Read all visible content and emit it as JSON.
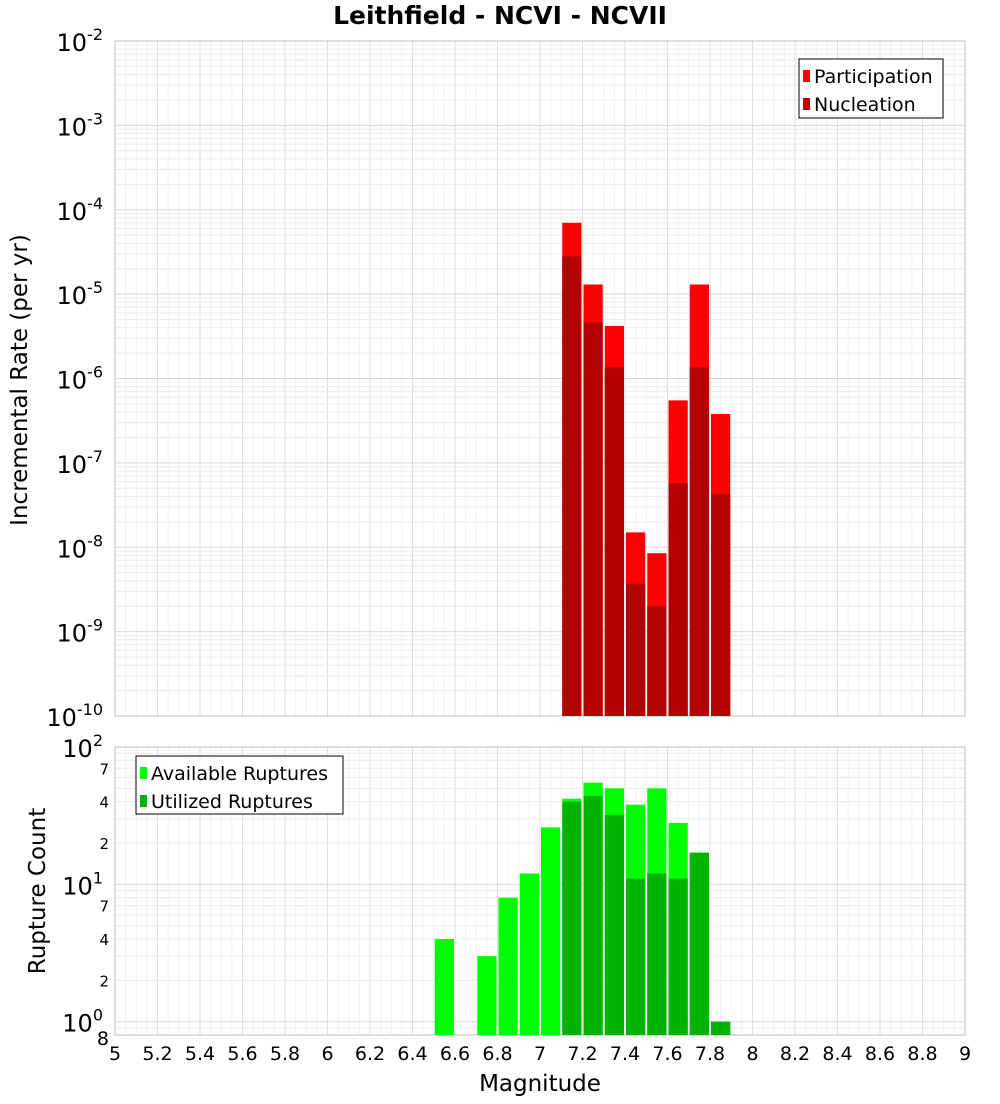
{
  "chart_data": [
    {
      "type": "bar",
      "title": "Leithfield - NCVI - NCVII",
      "xlabel": "Magnitude",
      "ylabel": "Incremental Rate (per yr)",
      "y_scale": "log",
      "xlim": [
        5,
        9
      ],
      "ylim": [
        1e-10,
        0.01
      ],
      "y_tick_labels": [
        {
          "base": "10",
          "exp": "-2"
        },
        {
          "base": "10",
          "exp": "-3"
        },
        {
          "base": "10",
          "exp": "-4"
        },
        {
          "base": "10",
          "exp": "-5"
        },
        {
          "base": "10",
          "exp": "-6"
        },
        {
          "base": "10",
          "exp": "-7"
        },
        {
          "base": "10",
          "exp": "-8"
        },
        {
          "base": "10",
          "exp": "-9"
        },
        {
          "base": "10",
          "exp": "-10"
        }
      ],
      "grid": true,
      "legend_position": "top-right",
      "x": [
        7.15,
        7.25,
        7.35,
        7.45,
        7.55,
        7.65,
        7.75,
        7.85
      ],
      "series": [
        {
          "name": "Participation",
          "color": "#ff0000",
          "values": [
            7e-05,
            1.3e-05,
            4.2e-06,
            1.5e-08,
            8.5e-09,
            5.5e-07,
            1.3e-05,
            3.8e-07
          ]
        },
        {
          "name": "Nucleation",
          "color": "#b30000",
          "values": [
            2.8e-05,
            4.6e-06,
            1.35e-06,
            3.7e-09,
            2e-09,
            5.7e-08,
            1.35e-06,
            4.3e-08
          ]
        }
      ]
    },
    {
      "type": "bar",
      "xlabel": "Magnitude",
      "ylabel": "Rupture Count",
      "y_scale": "log",
      "xlim": [
        5,
        9
      ],
      "ylim": [
        0.8,
        100
      ],
      "x_ticks": [
        "5",
        "5.2",
        "5.4",
        "5.6",
        "5.8",
        "6",
        "6.2",
        "6.4",
        "6.6",
        "6.8",
        "7",
        "7.2",
        "7.4",
        "7.6",
        "7.8",
        "8",
        "8.2",
        "8.4",
        "8.6",
        "8.8",
        "9"
      ],
      "y_tick_labels": [
        {
          "base": "10",
          "exp": "2"
        },
        {
          "base": "10",
          "exp": "1"
        },
        {
          "base": "10",
          "exp": "0"
        },
        {
          "base": "",
          "exp": "7"
        },
        {
          "base": "",
          "exp": "4"
        },
        {
          "base": "",
          "exp": "2"
        },
        {
          "base": "",
          "exp": "7"
        },
        {
          "base": "",
          "exp": "4"
        },
        {
          "base": "",
          "exp": "2"
        },
        {
          "base": "8",
          "exp": ""
        }
      ],
      "grid": true,
      "legend_position": "top-left",
      "x": [
        6.55,
        6.75,
        6.85,
        6.95,
        7.05,
        7.15,
        7.25,
        7.35,
        7.45,
        7.55,
        7.65,
        7.75,
        7.85
      ],
      "series": [
        {
          "name": "Available Ruptures",
          "color": "#00ff00",
          "values": [
            4,
            3,
            8,
            12,
            26,
            42,
            55,
            50,
            38,
            50,
            28,
            17,
            1
          ]
        },
        {
          "name": "Utilized Ruptures",
          "color": "#00b300",
          "values": [
            0,
            0,
            0,
            0,
            0,
            40,
            44,
            32,
            11,
            12,
            11,
            17,
            1
          ]
        }
      ]
    }
  ]
}
